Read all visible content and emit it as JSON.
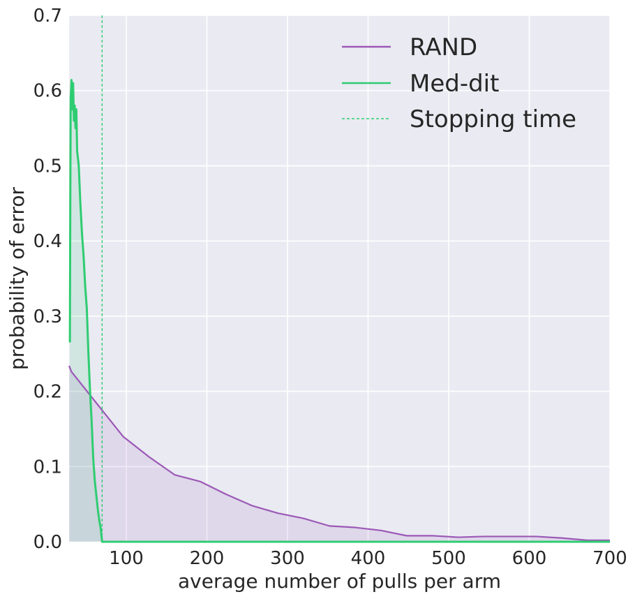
{
  "chart_data": {
    "type": "line",
    "xlabel": "average number of pulls per arm",
    "ylabel": "probability of error",
    "xlim": [
      29,
      700
    ],
    "ylim": [
      0,
      0.7
    ],
    "xticks": [
      "100",
      "200",
      "300",
      "400",
      "500",
      "600",
      "700"
    ],
    "xtick_values": [
      100,
      200,
      300,
      400,
      500,
      600,
      700
    ],
    "yticks": [
      "0.0",
      "0.1",
      "0.2",
      "0.3",
      "0.4",
      "0.5",
      "0.6",
      "0.7"
    ],
    "ytick_values": [
      0,
      0.1,
      0.2,
      0.3,
      0.4,
      0.5,
      0.6,
      0.7
    ],
    "grid": true,
    "legend_position": "top-right",
    "background_color": "#eaeaf2",
    "grid_color": "#ffffff",
    "series": [
      {
        "name": "RAND",
        "color": "#9b59b6",
        "fill": true,
        "points": [
          [
            29,
            0.234
          ],
          [
            32,
            0.226
          ],
          [
            64,
            0.183
          ],
          [
            96,
            0.14
          ],
          [
            128,
            0.113
          ],
          [
            160,
            0.089
          ],
          [
            192,
            0.08
          ],
          [
            224,
            0.063
          ],
          [
            256,
            0.048
          ],
          [
            288,
            0.038
          ],
          [
            320,
            0.031
          ],
          [
            352,
            0.021
          ],
          [
            384,
            0.019
          ],
          [
            416,
            0.015
          ],
          [
            448,
            0.008
          ],
          [
            480,
            0.008
          ],
          [
            512,
            0.006
          ],
          [
            544,
            0.007
          ],
          [
            576,
            0.007
          ],
          [
            608,
            0.007
          ],
          [
            640,
            0.005
          ],
          [
            672,
            0.002
          ],
          [
            700,
            0.002
          ]
        ]
      },
      {
        "name": "Med-dit",
        "color": "#2ecc71",
        "fill": true,
        "points": [
          [
            30,
            0.265
          ],
          [
            30.5,
            0.45
          ],
          [
            31,
            0.59
          ],
          [
            32,
            0.614
          ],
          [
            33,
            0.575
          ],
          [
            34,
            0.61
          ],
          [
            35,
            0.56
          ],
          [
            36,
            0.58
          ],
          [
            37,
            0.55
          ],
          [
            38,
            0.575
          ],
          [
            39,
            0.52
          ],
          [
            41,
            0.5
          ],
          [
            43,
            0.45
          ],
          [
            45,
            0.41
          ],
          [
            47,
            0.38
          ],
          [
            49,
            0.34
          ],
          [
            51,
            0.31
          ],
          [
            53,
            0.25
          ],
          [
            55,
            0.2
          ],
          [
            57,
            0.16
          ],
          [
            59,
            0.11
          ],
          [
            61,
            0.08
          ],
          [
            63,
            0.06
          ],
          [
            65,
            0.04
          ],
          [
            67,
            0.025
          ],
          [
            68,
            0.02
          ],
          [
            69,
            0.01
          ],
          [
            70,
            0.0
          ],
          [
            700,
            0.0
          ]
        ]
      }
    ],
    "vlines": [
      {
        "name": "Stopping time",
        "x": 70,
        "color": "#2ecc71",
        "style": "dashed"
      }
    ]
  }
}
